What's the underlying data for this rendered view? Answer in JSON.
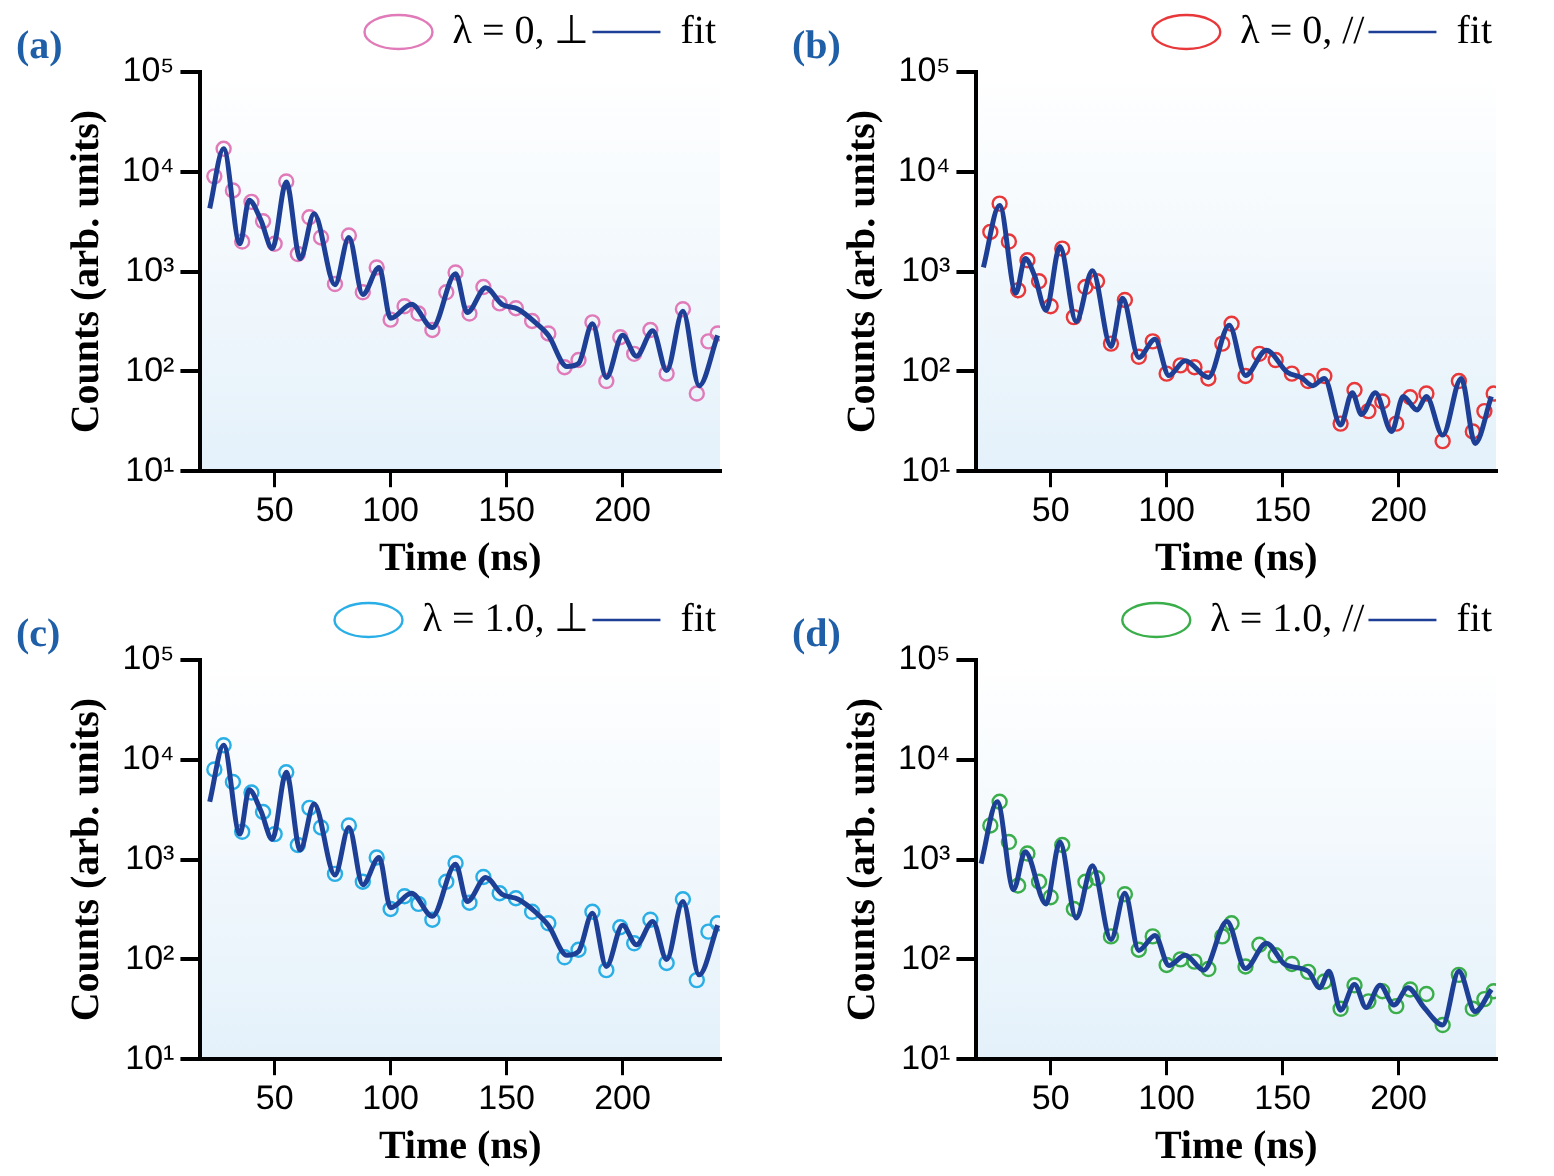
{
  "chart_data": [
    {
      "type": "scatter",
      "title": "(a)",
      "xlabel": "Time (ns)",
      "ylabel": "Counts (arb. units)",
      "log": "y",
      "xlim": [
        18,
        242
      ],
      "xticks": [
        50,
        100,
        150,
        200
      ],
      "ylim": [
        10,
        100000
      ],
      "yticks": [
        {
          "value": 10,
          "label": "10¹"
        },
        {
          "value": 100,
          "label": "10²"
        },
        {
          "value": 1000,
          "label": "10³"
        },
        {
          "value": 10000,
          "label": "10⁴"
        },
        {
          "value": 100000,
          "label": "10⁵"
        }
      ],
      "grid": false,
      "legend": "top right",
      "series": [
        {
          "name": "λ = 0, ⊥",
          "color": "#e07ab8",
          "marker": "circle",
          "x": [
            24,
            28,
            32,
            36,
            40,
            45,
            50,
            55,
            60,
            65,
            70,
            76,
            82,
            88,
            94,
            100,
            106,
            112,
            118,
            124,
            128,
            134,
            140,
            147,
            154,
            161,
            168,
            175,
            181,
            187,
            193,
            199,
            205,
            212,
            219,
            226,
            232,
            237,
            241
          ],
          "values": [
            9000,
            17000,
            6500,
            2000,
            5000,
            3200,
            1900,
            8000,
            1500,
            3500,
            2200,
            750,
            2300,
            620,
            1100,
            330,
            450,
            380,
            260,
            620,
            980,
            380,
            700,
            480,
            430,
            320,
            240,
            110,
            130,
            310,
            80,
            220,
            150,
            260,
            95,
            420,
            60,
            200,
            240
          ]
        },
        {
          "name": "fit",
          "type": "line",
          "color": "#1d3f96",
          "marker": "none",
          "x": [
            22,
            28,
            35,
            39,
            44,
            49,
            55,
            61,
            67,
            76,
            82,
            88,
            95,
            100,
            109,
            118,
            128,
            133,
            141,
            148,
            155,
            163,
            168,
            176,
            181,
            187,
            193,
            200,
            206,
            213,
            219,
            226,
            233,
            241
          ],
          "values": [
            4300,
            17000,
            1900,
            5200,
            3300,
            1700,
            7900,
            1350,
            3800,
            740,
            2200,
            590,
            1100,
            340,
            470,
            275,
            950,
            390,
            690,
            470,
            420,
            300,
            230,
            112,
            120,
            300,
            87,
            230,
            142,
            255,
            102,
            400,
            72,
            230
          ]
        }
      ]
    },
    {
      "type": "scatter",
      "title": "(b)",
      "xlabel": "Time (ns)",
      "ylabel": "Counts (arb. units)",
      "log": "y",
      "xlim": [
        18,
        242
      ],
      "xticks": [
        50,
        100,
        150,
        200
      ],
      "ylim": [
        10,
        100000
      ],
      "yticks": [
        {
          "value": 10,
          "label": "10¹"
        },
        {
          "value": 100,
          "label": "10²"
        },
        {
          "value": 1000,
          "label": "10³"
        },
        {
          "value": 10000,
          "label": "10⁴"
        },
        {
          "value": 100000,
          "label": "10⁵"
        }
      ],
      "grid": false,
      "legend": "top right",
      "series": [
        {
          "name": "λ = 0, //",
          "color": "#e8383a",
          "marker": "circle",
          "x": [
            24,
            28,
            32,
            36,
            40,
            45,
            50,
            55,
            60,
            65,
            70,
            76,
            82,
            88,
            94,
            100,
            106,
            112,
            118,
            124,
            128,
            134,
            140,
            147,
            154,
            161,
            168,
            175,
            181,
            187,
            193,
            199,
            205,
            212,
            219,
            226,
            232,
            237,
            241
          ],
          "values": [
            2500,
            4800,
            2000,
            650,
            1300,
            800,
            450,
            1700,
            350,
            700,
            800,
            190,
            520,
            140,
            200,
            95,
            115,
            110,
            85,
            190,
            300,
            90,
            150,
            130,
            95,
            80,
            90,
            30,
            65,
            40,
            50,
            30,
            55,
            60,
            20,
            80,
            25,
            40,
            60
          ]
        },
        {
          "name": "fit",
          "type": "line",
          "color": "#1d3f96",
          "marker": "none",
          "x": [
            21,
            28,
            35,
            39,
            43,
            48,
            54,
            61,
            68,
            76,
            81,
            88,
            95,
            101,
            108,
            118,
            127,
            134,
            143,
            152,
            158,
            163,
            168,
            175,
            180,
            184,
            190,
            197,
            202,
            208,
            212,
            219,
            227,
            233,
            240
          ],
          "values": [
            1100,
            4600,
            610,
            1350,
            920,
            410,
            1780,
            316,
            1020,
            178,
            540,
            138,
            210,
            91,
            128,
            87,
            290,
            91,
            163,
            98,
            87,
            72,
            85,
            29,
            61,
            37,
            61,
            25,
            56,
            41,
            56,
            23,
            85,
            19,
            56
          ]
        }
      ]
    },
    {
      "type": "scatter",
      "title": "(c)",
      "xlabel": "Time (ns)",
      "ylabel": "Counts (arb. units)",
      "log": "y",
      "xlim": [
        18,
        242
      ],
      "xticks": [
        50,
        100,
        150,
        200
      ],
      "ylim": [
        10,
        100000
      ],
      "yticks": [
        {
          "value": 10,
          "label": "10¹"
        },
        {
          "value": 100,
          "label": "10²"
        },
        {
          "value": 1000,
          "label": "10³"
        },
        {
          "value": 10000,
          "label": "10⁴"
        },
        {
          "value": 100000,
          "label": "10⁵"
        }
      ],
      "grid": false,
      "legend": "top right",
      "series": [
        {
          "name": "λ = 1.0, ⊥",
          "color": "#29aee6",
          "marker": "circle",
          "x": [
            24,
            28,
            32,
            36,
            40,
            45,
            50,
            55,
            60,
            65,
            70,
            76,
            82,
            88,
            94,
            100,
            106,
            112,
            118,
            124,
            128,
            134,
            140,
            147,
            154,
            161,
            168,
            175,
            181,
            187,
            193,
            199,
            205,
            212,
            219,
            226,
            232,
            237,
            241
          ],
          "values": [
            8000,
            14000,
            6000,
            1900,
            4700,
            3000,
            1800,
            7500,
            1400,
            3300,
            2100,
            720,
            2200,
            600,
            1050,
            320,
            430,
            360,
            250,
            600,
            920,
            370,
            670,
            460,
            410,
            300,
            230,
            105,
            125,
            300,
            78,
            210,
            145,
            250,
            92,
            400,
            62,
            190,
            230
          ]
        },
        {
          "name": "fit",
          "type": "line",
          "color": "#1d3f96",
          "marker": "none",
          "x": [
            22,
            28,
            35,
            39,
            44,
            49,
            55,
            61,
            67,
            76,
            82,
            88,
            95,
            100,
            109,
            118,
            128,
            133,
            141,
            148,
            155,
            163,
            168,
            176,
            181,
            187,
            193,
            200,
            206,
            213,
            219,
            226,
            233,
            241
          ],
          "values": [
            3800,
            14000,
            1800,
            5000,
            3100,
            1600,
            7500,
            1250,
            3600,
            700,
            2100,
            560,
            1050,
            330,
            460,
            270,
            900,
            380,
            660,
            450,
            400,
            290,
            220,
            110,
            120,
            290,
            85,
            220,
            140,
            240,
            100,
            380,
            70,
            220
          ]
        }
      ]
    },
    {
      "type": "scatter",
      "title": "(d)",
      "xlabel": "Time (ns)",
      "ylabel": "Counts (arb. units)",
      "log": "y",
      "xlim": [
        18,
        242
      ],
      "xticks": [
        50,
        100,
        150,
        200
      ],
      "ylim": [
        10,
        100000
      ],
      "yticks": [
        {
          "value": 10,
          "label": "10¹"
        },
        {
          "value": 100,
          "label": "10²"
        },
        {
          "value": 1000,
          "label": "10³"
        },
        {
          "value": 10000,
          "label": "10⁴"
        },
        {
          "value": 100000,
          "label": "10⁵"
        }
      ],
      "grid": false,
      "legend": "top right",
      "series": [
        {
          "name": "λ = 1.0, //",
          "color": "#3aae4a",
          "marker": "circle",
          "x": [
            24,
            28,
            32,
            36,
            40,
            45,
            50,
            55,
            60,
            65,
            70,
            76,
            82,
            88,
            94,
            100,
            106,
            112,
            118,
            124,
            128,
            134,
            140,
            147,
            154,
            161,
            168,
            175,
            181,
            187,
            193,
            199,
            205,
            212,
            219,
            226,
            232,
            237,
            241
          ],
          "values": [
            2200,
            3800,
            1500,
            550,
            1150,
            600,
            420,
            1400,
            320,
            600,
            650,
            170,
            450,
            125,
            170,
            88,
            100,
            95,
            80,
            170,
            230,
            85,
            140,
            110,
            90,
            75,
            60,
            32,
            55,
            38,
            48,
            34,
            50,
            45,
            22,
            70,
            32,
            40,
            48
          ]
        },
        {
          "name": "fit",
          "type": "line",
          "color": "#1d3f96",
          "marker": "none",
          "x": [
            20,
            27,
            34,
            39,
            48,
            54,
            61,
            68,
            76,
            82,
            88,
            95,
            101,
            108,
            116,
            126,
            134,
            143,
            151,
            161,
            166,
            170,
            175,
            181,
            186,
            192,
            198,
            204,
            211,
            219,
            226,
            233,
            240
          ],
          "values": [
            910,
            3800,
            500,
            1200,
            360,
            1500,
            260,
            870,
            158,
            460,
            123,
            174,
            87,
            110,
            78,
            240,
            81,
            145,
            89,
            76,
            52,
            76,
            31,
            56,
            33,
            55,
            35,
            52,
            33,
            22,
            76,
            30,
            50
          ]
        }
      ]
    }
  ]
}
